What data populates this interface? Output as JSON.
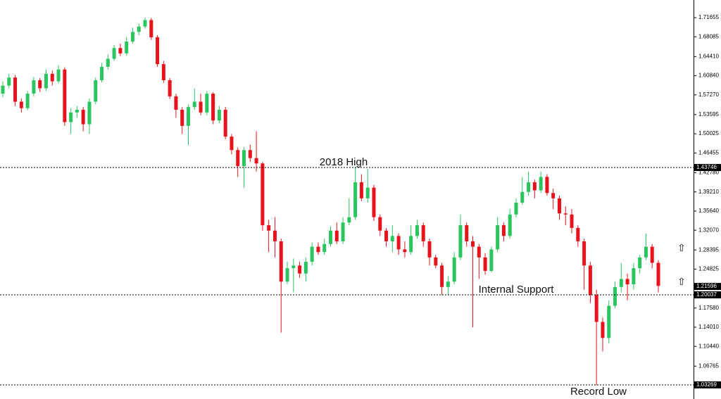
{
  "chart_data": {
    "type": "candlestick",
    "up_color": "#2bc55f",
    "down_color": "#e8121c",
    "ylim": [
      1.0064,
      1.7494
    ],
    "yticks": [
      {
        "value": 1.71655,
        "label": "1.71655"
      },
      {
        "value": 1.68085,
        "label": "1.68085"
      },
      {
        "value": 1.6441,
        "label": "1.64410"
      },
      {
        "value": 1.6084,
        "label": "1.60840"
      },
      {
        "value": 1.5727,
        "label": "1.57270"
      },
      {
        "value": 1.53595,
        "label": "1.53595"
      },
      {
        "value": 1.50025,
        "label": "1.50025"
      },
      {
        "value": 1.46455,
        "label": "1.46455"
      },
      {
        "value": 1.4278,
        "label": "1.42780"
      },
      {
        "value": 1.3921,
        "label": "1.39210"
      },
      {
        "value": 1.3564,
        "label": "1.35640"
      },
      {
        "value": 1.3207,
        "label": "1.32070"
      },
      {
        "value": 1.28395,
        "label": "1.28395"
      },
      {
        "value": 1.24825,
        "label": "1.24825"
      },
      {
        "value": 1.1758,
        "label": "1.17580"
      },
      {
        "value": 1.1401,
        "label": "1.14010"
      },
      {
        "value": 1.1044,
        "label": "1.10440"
      },
      {
        "value": 1.06765,
        "label": "1.06765"
      }
    ],
    "levels": [
      {
        "value": 1.43746,
        "text": "2018 High"
      },
      {
        "value": 1.20037,
        "text": "Internal Support"
      },
      {
        "value": 1.03269,
        "text": "Record Low"
      }
    ],
    "last_price": 1.21596,
    "candles": {
      "open": [
        1.575,
        1.59,
        1.605,
        1.56,
        1.548,
        1.575,
        1.6,
        1.585,
        1.612,
        1.598,
        1.62,
        1.522,
        1.54,
        1.545,
        1.518,
        1.56,
        1.6,
        1.625,
        1.64,
        1.66,
        1.65,
        1.672,
        1.69,
        1.7,
        1.712,
        1.68,
        1.63,
        1.6,
        1.57,
        1.545,
        1.515,
        1.55,
        1.56,
        1.54,
        1.575,
        1.525,
        1.545,
        1.495,
        1.47,
        1.44,
        1.47,
        1.455,
        1.445,
        1.33,
        1.32,
        1.3,
        1.225,
        1.25,
        1.255,
        1.24,
        1.262,
        1.29,
        1.28,
        1.295,
        1.32,
        1.3,
        1.335,
        1.345,
        1.41,
        1.38,
        1.4,
        1.345,
        1.32,
        1.3,
        1.31,
        1.285,
        1.28,
        1.31,
        1.33,
        1.3,
        1.27,
        1.255,
        1.215,
        1.225,
        1.27,
        1.33,
        1.3,
        1.29,
        1.27,
        1.245,
        1.285,
        1.33,
        1.31,
        1.35,
        1.372,
        1.392,
        1.41,
        1.395,
        1.42,
        1.39,
        1.38,
        1.352,
        1.35,
        1.325,
        1.3,
        1.255,
        1.2,
        1.15,
        1.12,
        1.18,
        1.215,
        1.23,
        1.22,
        1.25,
        1.27,
        1.29,
        1.26
      ],
      "high": [
        1.598,
        1.612,
        1.61,
        1.566,
        1.58,
        1.606,
        1.604,
        1.62,
        1.618,
        1.628,
        1.624,
        1.548,
        1.552,
        1.55,
        1.566,
        1.605,
        1.632,
        1.648,
        1.666,
        1.668,
        1.68,
        1.698,
        1.706,
        1.717,
        1.716,
        1.684,
        1.636,
        1.604,
        1.575,
        1.55,
        1.555,
        1.585,
        1.575,
        1.58,
        1.578,
        1.552,
        1.55,
        1.5,
        1.475,
        1.476,
        1.48,
        1.505,
        1.448,
        1.34,
        1.345,
        1.305,
        1.262,
        1.268,
        1.262,
        1.27,
        1.298,
        1.298,
        1.305,
        1.328,
        1.335,
        1.345,
        1.38,
        1.4375,
        1.425,
        1.435,
        1.405,
        1.35,
        1.325,
        1.33,
        1.315,
        1.3,
        1.33,
        1.34,
        1.335,
        1.305,
        1.275,
        1.26,
        1.235,
        1.28,
        1.35,
        1.335,
        1.31,
        1.295,
        1.278,
        1.29,
        1.345,
        1.335,
        1.36,
        1.38,
        1.42,
        1.43,
        1.415,
        1.43,
        1.425,
        1.398,
        1.385,
        1.365,
        1.36,
        1.33,
        1.305,
        1.262,
        1.21,
        1.158,
        1.19,
        1.225,
        1.26,
        1.24,
        1.26,
        1.275,
        1.315,
        1.295,
        1.265
      ],
      "low": [
        1.568,
        1.585,
        1.552,
        1.54,
        1.544,
        1.57,
        1.578,
        1.58,
        1.59,
        1.594,
        1.515,
        1.5,
        1.53,
        1.505,
        1.5,
        1.555,
        1.596,
        1.62,
        1.636,
        1.645,
        1.646,
        1.668,
        1.684,
        1.696,
        1.675,
        1.625,
        1.595,
        1.565,
        1.53,
        1.5,
        1.48,
        1.545,
        1.535,
        1.535,
        1.518,
        1.52,
        1.49,
        1.462,
        1.42,
        1.4,
        1.448,
        1.43,
        1.32,
        1.28,
        1.27,
        1.13,
        1.22,
        1.205,
        1.232,
        1.225,
        1.255,
        1.275,
        1.275,
        1.29,
        1.295,
        1.295,
        1.33,
        1.34,
        1.375,
        1.372,
        1.338,
        1.31,
        1.29,
        1.28,
        1.275,
        1.27,
        1.275,
        1.305,
        1.29,
        1.255,
        1.25,
        1.2,
        1.2,
        1.22,
        1.265,
        1.29,
        1.14,
        1.23,
        1.238,
        1.242,
        1.28,
        1.3,
        1.305,
        1.345,
        1.368,
        1.385,
        1.38,
        1.39,
        1.385,
        1.36,
        1.34,
        1.33,
        1.315,
        1.29,
        1.21,
        1.185,
        1.032,
        1.095,
        1.11,
        1.175,
        1.205,
        1.19,
        1.21,
        1.24,
        1.265,
        1.25,
        1.205
      ],
      "close": [
        1.59,
        1.605,
        1.56,
        1.548,
        1.575,
        1.6,
        1.585,
        1.612,
        1.598,
        1.62,
        1.522,
        1.54,
        1.545,
        1.518,
        1.56,
        1.6,
        1.625,
        1.64,
        1.66,
        1.65,
        1.672,
        1.69,
        1.7,
        1.712,
        1.68,
        1.63,
        1.6,
        1.57,
        1.545,
        1.515,
        1.55,
        1.56,
        1.54,
        1.575,
        1.525,
        1.545,
        1.495,
        1.47,
        1.44,
        1.47,
        1.455,
        1.445,
        1.33,
        1.32,
        1.3,
        1.225,
        1.25,
        1.255,
        1.24,
        1.262,
        1.29,
        1.28,
        1.295,
        1.32,
        1.3,
        1.335,
        1.345,
        1.41,
        1.38,
        1.4,
        1.345,
        1.32,
        1.3,
        1.31,
        1.285,
        1.28,
        1.31,
        1.33,
        1.3,
        1.27,
        1.255,
        1.215,
        1.225,
        1.27,
        1.33,
        1.3,
        1.29,
        1.27,
        1.245,
        1.285,
        1.33,
        1.31,
        1.35,
        1.372,
        1.392,
        1.41,
        1.395,
        1.42,
        1.39,
        1.38,
        1.352,
        1.35,
        1.325,
        1.3,
        1.255,
        1.2,
        1.15,
        1.12,
        1.18,
        1.215,
        1.23,
        1.22,
        1.25,
        1.27,
        1.29,
        1.26,
        1.217
      ]
    }
  }
}
